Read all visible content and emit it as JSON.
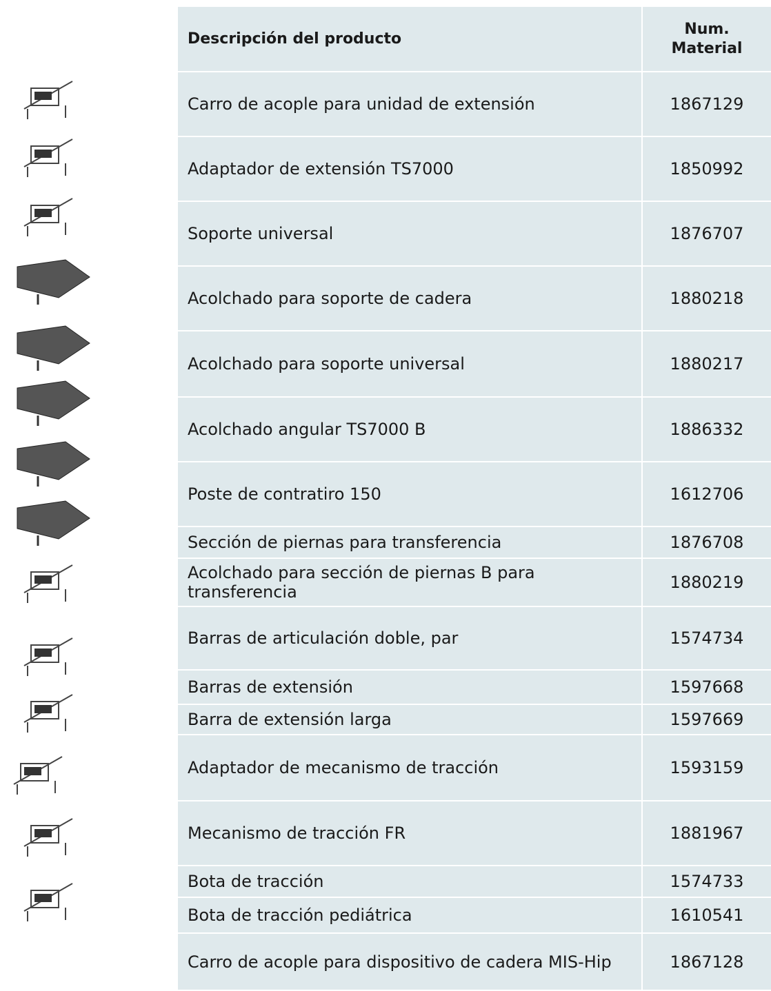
{
  "table": {
    "header": [
      "Descripción del producto",
      "Num. Material"
    ],
    "rows": [
      [
        "Carro de acople para unidad de extensión",
        "1867129"
      ],
      [
        "Adaptador de extensión TS7000",
        "1850992"
      ],
      [
        "Soporte universal",
        "1876707"
      ],
      [
        "Acolchado para soporte de cadera",
        "1880218"
      ],
      [
        "Acolchado para soporte universal",
        "1880217"
      ],
      [
        "Acolchado angular TS7000 B",
        "1886332"
      ],
      [
        "Poste de contratiro 150",
        "1612706"
      ],
      [
        "Sección de piernas para transferencia",
        "1876708"
      ],
      [
        "Acolchado para sección de piernas B para transferencia",
        "1880219"
      ],
      [
        "Barras de articulación doble, par",
        "1574734"
      ],
      [
        "Barras de extensión",
        "1597668"
      ],
      [
        "Barra de extensión larga",
        "1597669"
      ],
      [
        "Adaptador de mecanismo de tracción",
        "1593159"
      ],
      [
        "Mecanismo de tracción FR",
        "1881967"
      ],
      [
        "Bota de tracción",
        "1574733"
      ],
      [
        "Bota de tracción pediátrica",
        "1610541"
      ],
      [
        "Carro de acople para dispositivo de cadera MIS-Hip",
        "1867128"
      ]
    ]
  }
}
